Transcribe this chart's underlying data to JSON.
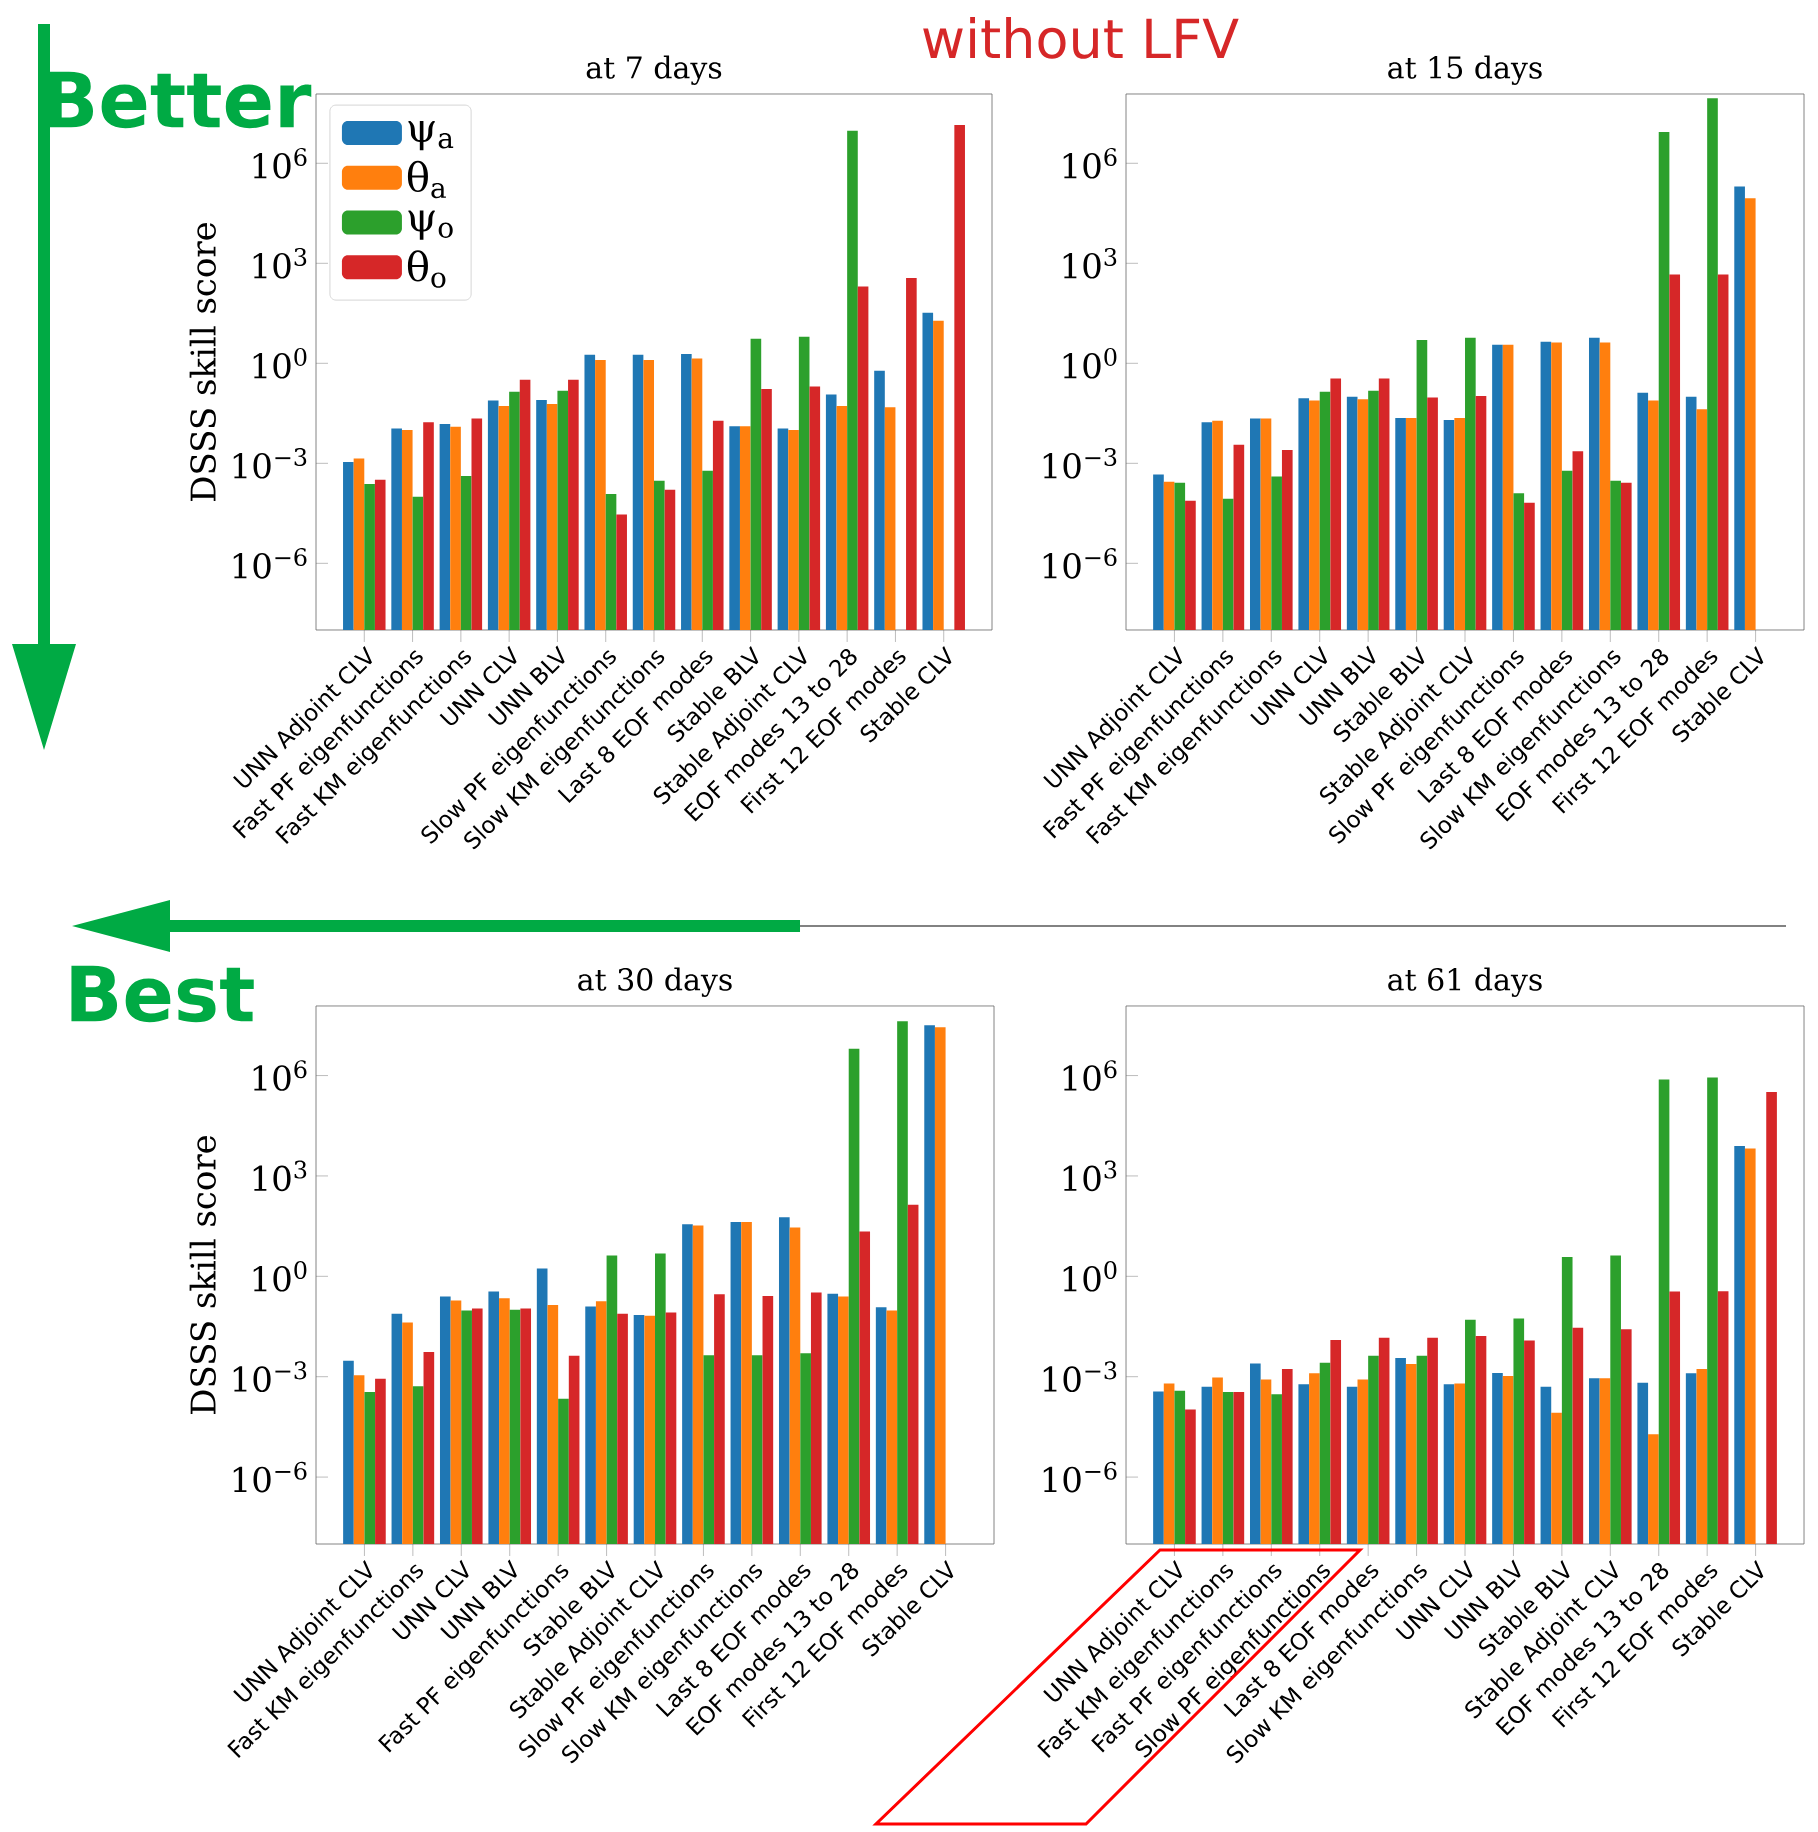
{
  "chart_data": [
    {
      "type": "bar",
      "title": "at 7 days",
      "ylabel": "DSSS skill score",
      "log": "y",
      "legend": "top left",
      "annotations": [
        "without LFV",
        "Better",
        "Best"
      ],
      "categories": [
        "UNN Adjoint CLV",
        "Fast PF eigenfunctions",
        "Fast KM eigenfunctions",
        "UNN CLV",
        "UNN BLV",
        "Slow PF eigenfunctions",
        "Slow KM eigenfunctions",
        "Last 8 EOF modes",
        "Stable BLV",
        "Stable Adjoint CLV",
        "EOF modes 13 to 28",
        "First 12 EOF modes",
        "Stable CLV"
      ],
      "ylim": [
        1e-08,
        120000000.0
      ],
      "yticks": [
        {
          "value": 1e-06,
          "label": "10$^{−6}$"
        },
        {
          "value": 0.001,
          "label": "10$^{−3}$"
        },
        {
          "value": 1,
          "label": "10$^{0}$"
        },
        {
          "value": 1000.0,
          "label": "10$^{3}$"
        },
        {
          "value": 1000000.0,
          "label": "10$^{6}$"
        }
      ],
      "series": [
        {
          "name": "ψ$_{a}$",
          "color": "#1f77b4",
          "values": [
            0.0011,
            0.011,
            0.015,
            0.076,
            0.079,
            1.8,
            1.8,
            1.9,
            0.013,
            0.011,
            0.115,
            0.6,
            33
          ]
        },
        {
          "name": "θ$_{a}$",
          "color": "#ff7f0e",
          "values": [
            0.0014,
            0.01,
            0.0126,
            0.052,
            0.06,
            1.26,
            1.26,
            1.4,
            0.013,
            0.01,
            0.052,
            0.048,
            19
          ]
        },
        {
          "name": "ψ$_{o}$",
          "color": "#2ca02c",
          "values": [
            0.00024,
            0.0001,
            0.00042,
            0.14,
            0.15,
            0.00012,
            0.0003,
            0.0006,
            5.5,
            6.3,
            9500000,
            null,
            null
          ]
        },
        {
          "name": "θ$_{o}$",
          "color": "#d62728",
          "values": [
            0.00032,
            0.017,
            0.022,
            0.32,
            0.32,
            2.9e-05,
            0.00016,
            0.019,
            0.17,
            0.2,
            200,
            360,
            14000000
          ]
        }
      ]
    },
    {
      "type": "bar",
      "title": "at 15 days",
      "log": "y",
      "categories": [
        "UNN Adjoint CLV",
        "Fast PF eigenfunctions",
        "Fast KM eigenfunctions",
        "UNN CLV",
        "UNN BLV",
        "Stable BLV",
        "Stable Adjoint CLV",
        "Slow PF eigenfunctions",
        "Last 8 EOF modes",
        "Slow KM eigenfunctions",
        "EOF modes 13 to 28",
        "First 12 EOF modes",
        "Stable CLV"
      ],
      "ylim": [
        1e-08,
        120000000.0
      ],
      "yticks": [
        {
          "value": 1e-06,
          "label": "10$^{−6}$"
        },
        {
          "value": 0.001,
          "label": "10$^{−3}$"
        },
        {
          "value": 1,
          "label": "10$^{0}$"
        },
        {
          "value": 1000.0,
          "label": "10$^{3}$"
        },
        {
          "value": 1000000.0,
          "label": "10$^{6}$"
        }
      ],
      "series": [
        {
          "color": "#1f77b4",
          "values": [
            0.00046,
            0.017,
            0.022,
            0.09,
            0.1,
            0.023,
            0.02,
            3.6,
            4.4,
            5.8,
            0.13,
            0.1,
            200000
          ]
        },
        {
          "color": "#ff7f0e",
          "values": [
            0.00028,
            0.019,
            0.022,
            0.076,
            0.083,
            0.023,
            0.023,
            3.6,
            4.2,
            4.2,
            0.076,
            0.042,
            90000
          ]
        },
        {
          "color": "#2ca02c",
          "values": [
            0.00026,
            8.7e-05,
            0.0004,
            0.14,
            0.15,
            5,
            5.8,
            0.000126,
            0.0006,
            0.0003,
            8700000,
            90000000,
            null
          ]
        },
        {
          "color": "#d62728",
          "values": [
            7.6e-05,
            0.0036,
            0.0025,
            0.35,
            0.35,
            0.095,
            0.105,
            6.6e-05,
            0.0023,
            0.00026,
            460,
            460,
            null
          ]
        }
      ]
    },
    {
      "type": "bar",
      "title": "at 30 days",
      "ylabel": "DSSS skill score",
      "log": "y",
      "categories": [
        "UNN Adjoint CLV",
        "Fast KM eigenfunctions",
        "UNN CLV",
        "UNN BLV",
        "Fast PF eigenfunctions",
        "Stable BLV",
        "Stable Adjoint CLV",
        "Slow PF eigenfunctions",
        "Slow KM eigenfunctions",
        "Last 8 EOF modes",
        "EOF modes 13 to 28",
        "First 12 EOF modes",
        "Stable CLV"
      ],
      "ylim": [
        1e-08,
        120000000.0
      ],
      "yticks": [
        {
          "value": 1e-06,
          "label": "10$^{−6}$"
        },
        {
          "value": 0.001,
          "label": "10$^{−3}$"
        },
        {
          "value": 1,
          "label": "10$^{0}$"
        },
        {
          "value": 1000.0,
          "label": "10$^{3}$"
        },
        {
          "value": 1000000.0,
          "label": "10$^{6}$"
        }
      ],
      "series": [
        {
          "color": "#1f77b4",
          "values": [
            0.003,
            0.076,
            0.25,
            0.35,
            1.7,
            0.126,
            0.07,
            36,
            42,
            58,
            0.3,
            0.12,
            32000000
          ]
        },
        {
          "color": "#ff7f0e",
          "values": [
            0.0011,
            0.042,
            0.19,
            0.22,
            0.14,
            0.18,
            0.066,
            33,
            42,
            29,
            0.25,
            0.095,
            28000000
          ]
        },
        {
          "color": "#2ca02c",
          "values": [
            0.00035,
            0.00052,
            0.095,
            0.1,
            0.00022,
            4.2,
            4.8,
            0.0044,
            0.0044,
            0.005,
            6300000,
            42000000,
            null
          ]
        },
        {
          "color": "#d62728",
          "values": [
            0.00087,
            0.0055,
            0.11,
            0.11,
            0.0042,
            0.076,
            0.083,
            0.29,
            0.26,
            0.33,
            22,
            138,
            null
          ]
        }
      ]
    },
    {
      "type": "bar",
      "title": "at 61 days",
      "log": "y",
      "categories": [
        "UNN Adjoint CLV",
        "Fast KM eigenfunctions",
        "Fast PF eigenfunctions",
        "Slow PF eigenfunctions",
        "Last 8 EOF modes",
        "Slow KM eigenfunctions",
        "UNN CLV",
        "UNN BLV",
        "Stable BLV",
        "Stable Adjoint CLV",
        "EOF modes 13 to 28",
        "First 12 EOF modes",
        "Stable CLV"
      ],
      "ylim": [
        1e-08,
        120000000.0
      ],
      "yticks": [
        {
          "value": 1e-06,
          "label": "10$^{−6}$"
        },
        {
          "value": 0.001,
          "label": "10$^{−3}$"
        },
        {
          "value": 1,
          "label": "10$^{0}$"
        },
        {
          "value": 1000.0,
          "label": "10$^{3}$"
        },
        {
          "value": 1000000.0,
          "label": "10$^{6}$"
        }
      ],
      "series": [
        {
          "color": "#1f77b4",
          "values": [
            0.00036,
            0.0005,
            0.0025,
            0.0006,
            0.0005,
            0.0036,
            0.0006,
            0.0013,
            0.0005,
            0.0009,
            0.00066,
            0.00126,
            7900
          ]
        },
        {
          "color": "#ff7f0e",
          "values": [
            0.00063,
            0.00095,
            0.00083,
            0.00126,
            0.00083,
            0.0024,
            0.00063,
            0.00105,
            8.3e-05,
            0.0009,
            1.9e-05,
            0.0017,
            6600
          ]
        },
        {
          "color": "#2ca02c",
          "values": [
            0.00038,
            0.00035,
            0.0003,
            0.0026,
            0.0042,
            0.0042,
            0.05,
            0.055,
            3.8,
            4.2,
            760000,
            870000,
            null
          ]
        },
        {
          "color": "#d62728",
          "values": [
            0.000105,
            0.00035,
            0.0017,
            0.0126,
            0.0145,
            0.0145,
            0.0166,
            0.012,
            0.029,
            0.026,
            0.35,
            0.36,
            320000
          ]
        }
      ]
    }
  ]
}
